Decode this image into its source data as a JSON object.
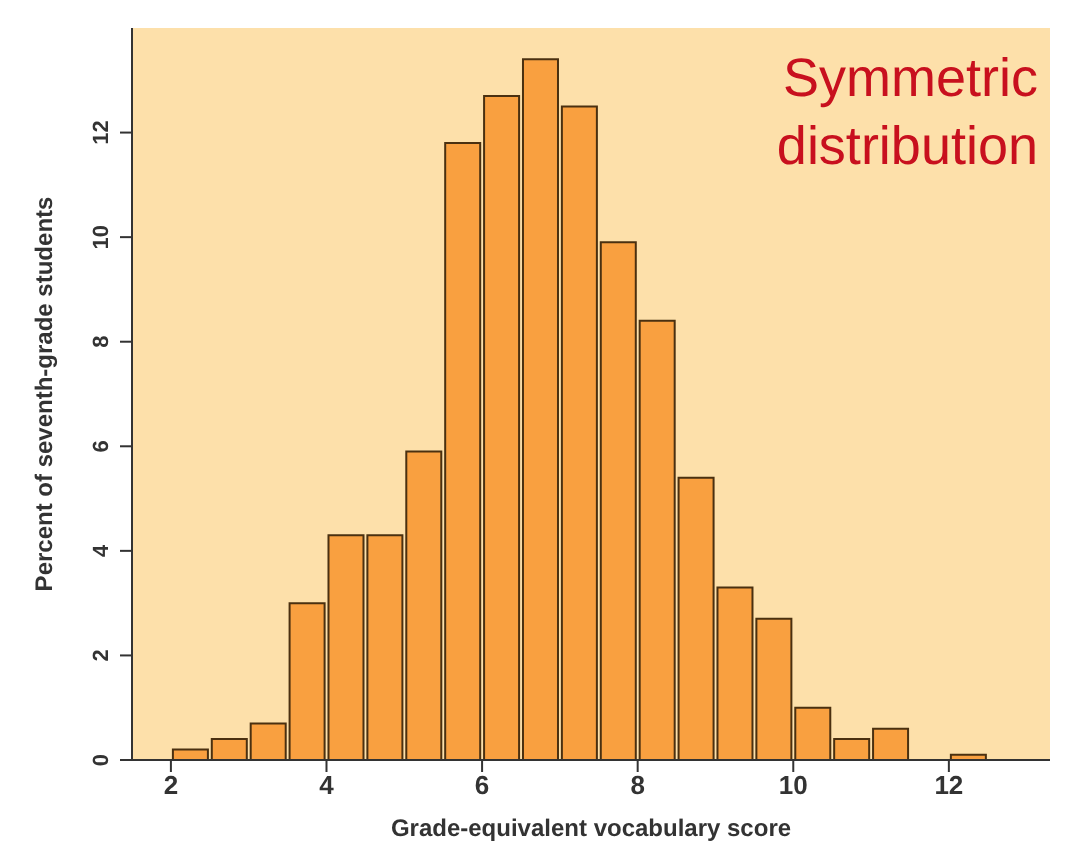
{
  "chart_data": {
    "type": "histogram",
    "xlabel": "Grade-equivalent vocabulary score",
    "ylabel": "Percent of seventh-grade students",
    "annotations": [
      "Symmetric distribution"
    ],
    "bins": [
      2,
      2.5,
      3,
      3.5,
      4,
      4.5,
      5,
      5.5,
      6,
      6.5,
      7,
      7.5,
      8,
      8.5,
      9,
      9.5,
      10,
      10.5,
      11,
      11.5,
      12,
      12.5
    ],
    "values": [
      0.2,
      0.4,
      0.7,
      3.0,
      4.3,
      4.3,
      5.9,
      11.8,
      12.7,
      13.4,
      12.5,
      9.9,
      8.4,
      5.4,
      3.3,
      2.7,
      1.0,
      0.4,
      0.6,
      0,
      0.1
    ],
    "color": "#f9a040",
    "xlim": [
      1.5,
      13.3
    ],
    "xticks": [
      2,
      4,
      6,
      8,
      10,
      12
    ],
    "ylim": [
      0,
      14
    ],
    "yticks": [
      0,
      2,
      4,
      6,
      8,
      10,
      12
    ]
  }
}
